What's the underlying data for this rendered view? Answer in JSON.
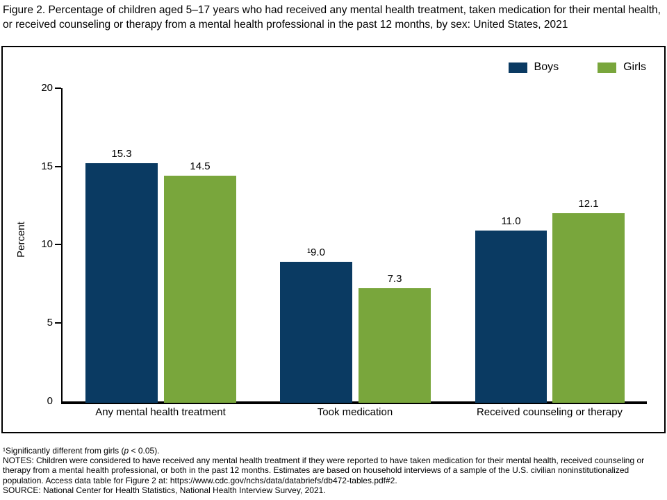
{
  "title": "Figure 2. Percentage of children aged 5–17 years who had received any mental health treatment, taken medication for their mental health, or received counseling or therapy from a mental health professional in the past 12 months, by sex: United States, 2021",
  "colors": {
    "boys": "#0a3a62",
    "girls": "#79a63c",
    "axis": "#000000",
    "text": "#000000"
  },
  "legend": {
    "boys_label": "Boys",
    "girls_label": "Girls"
  },
  "y_axis": {
    "label": "Percent",
    "ticks": [
      "20",
      "15",
      "10",
      "5",
      "0"
    ]
  },
  "chart_data": {
    "type": "bar",
    "title": "Percentage of children aged 5–17 years who had received any mental health treatment, taken medication, or received counseling or therapy, by sex: United States, 2021",
    "categories": [
      "Any mental health treatment",
      "Took medication",
      "Received counseling or therapy"
    ],
    "series": [
      {
        "name": "Boys",
        "key": "boys",
        "values": [
          15.3,
          9.0,
          11.0
        ],
        "labels": [
          "15.3",
          "¹9.0",
          "11.0"
        ]
      },
      {
        "name": "Girls",
        "key": "girls",
        "values": [
          14.5,
          7.3,
          12.1
        ],
        "labels": [
          "14.5",
          "7.3",
          "12.1"
        ]
      }
    ],
    "xlabel": "",
    "ylabel": "Percent",
    "ylim": [
      0,
      20
    ],
    "yticks": [
      0,
      5,
      10,
      15,
      20
    ],
    "grid": false,
    "legend_position": "top-right",
    "annotations": [
      "¹ indicates significantly different from girls (p < 0.05), shown on Boys bar of Took medication"
    ]
  },
  "footnotes": {
    "significance_pre": "¹Significantly different from girls (",
    "significance_p": "p",
    "significance_post": " < 0.05).",
    "notes": "NOTES: Children were considered to have received any mental health treatment if they were reported to have taken medication for their mental health, received counseling or therapy from a mental health professional, or both in the past 12 months. Estimates are based on household interviews of a sample of the U.S. civilian noninstitutionalized population. Access data table for Figure 2 at: https://www.cdc.gov/nchs/data/databriefs/db472-tables.pdf#2.",
    "source": "SOURCE: National Center for Health Statistics, National Health Interview Survey, 2021."
  }
}
